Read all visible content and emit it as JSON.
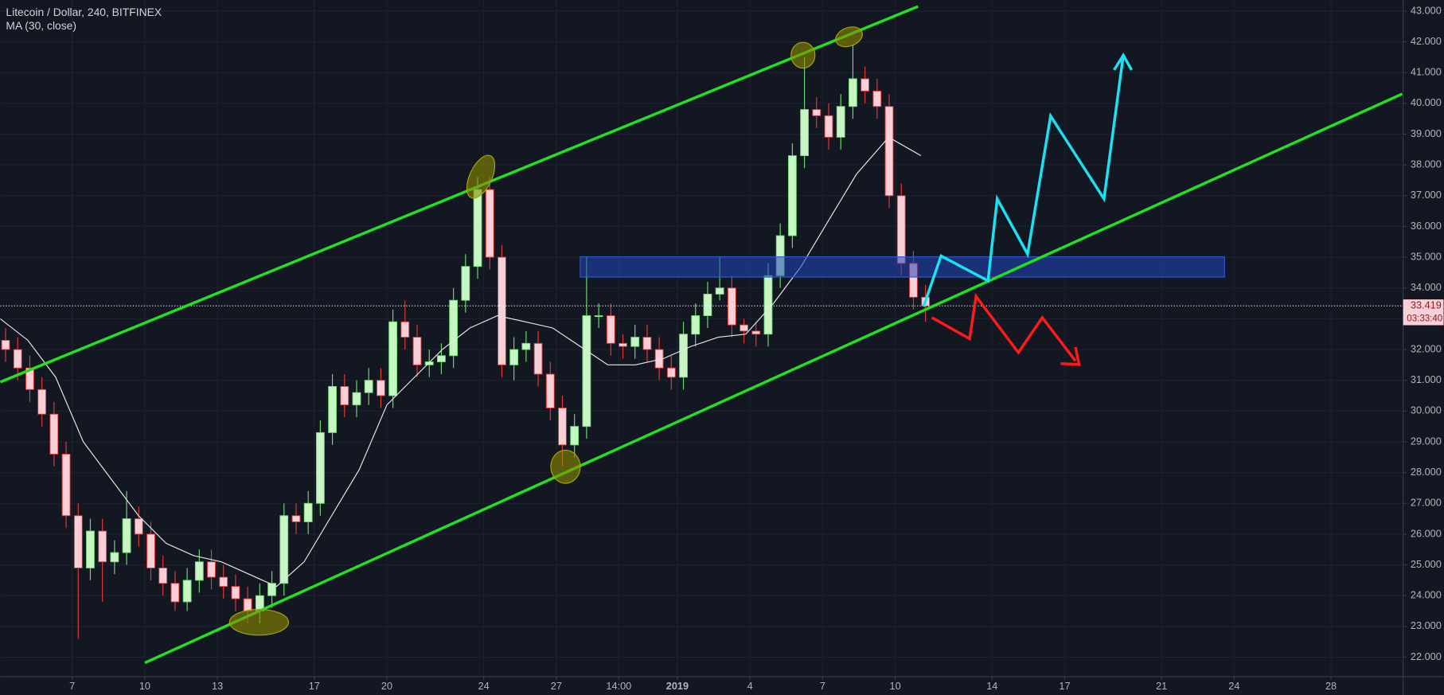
{
  "chart_data": {
    "type": "candlestick",
    "title": "Litecoin / Dollar, 240, BITFINEX",
    "up_color": "#c8f5c4",
    "up_wick": "#6ddc6d",
    "down_color": "#f9d0d8",
    "down_wick": "#e53935",
    "candles": {
      "x": [
        -2.75,
        -2.25,
        -1.75,
        -1.25,
        -0.75,
        -0.25,
        0.25,
        0.75,
        1.25,
        1.75,
        2.25,
        2.75,
        3.25,
        3.75,
        4.25,
        4.75,
        5.25,
        5.75,
        6.25,
        6.75,
        7.25,
        7.75,
        8.25,
        8.75,
        9.25,
        9.75,
        10.25,
        10.75,
        11.25,
        11.75,
        12.25,
        12.75,
        13.25,
        13.75,
        14.25,
        14.75,
        15.25,
        15.75,
        16.25,
        16.75,
        17.25,
        17.75,
        18.25,
        18.75,
        19.25,
        19.75,
        20.25,
        20.75,
        21.25,
        21.75,
        22.25,
        22.75,
        23.25,
        23.75,
        24.25,
        24.75,
        25.25,
        25.75,
        26.25,
        26.75,
        27.25,
        27.75,
        28.25,
        28.75,
        29.25,
        29.75,
        30.25,
        30.75,
        31.25,
        31.75,
        32.25,
        32.75,
        33.25,
        33.75,
        34.25,
        34.75,
        35.25
      ],
      "open": [
        32.3,
        32.0,
        31.4,
        30.7,
        29.9,
        28.6,
        26.6,
        24.9,
        26.1,
        25.1,
        25.4,
        26.5,
        26.0,
        24.9,
        24.4,
        23.8,
        24.5,
        25.1,
        24.6,
        24.3,
        23.9,
        23.5,
        24.0,
        24.4,
        26.6,
        26.4,
        27.0,
        29.3,
        30.8,
        30.2,
        30.6,
        31.0,
        30.5,
        32.9,
        32.4,
        31.5,
        31.6,
        31.8,
        33.6,
        34.7,
        37.2,
        35.0,
        31.5,
        32.0,
        32.2,
        31.2,
        30.1,
        28.9,
        29.5,
        33.1,
        33.1,
        32.2,
        32.1,
        32.4,
        32.0,
        31.4,
        31.1,
        32.5,
        33.1,
        33.8,
        34.0,
        32.8,
        32.6,
        32.5,
        34.4,
        35.7,
        38.3,
        39.8,
        39.6,
        38.9,
        39.9,
        40.8,
        40.4,
        39.9,
        37.0,
        34.8,
        33.7
      ],
      "high": [
        32.7,
        32.4,
        31.8,
        31.1,
        30.3,
        29.0,
        27.0,
        26.5,
        26.5,
        25.8,
        27.4,
        26.9,
        26.4,
        25.3,
        24.8,
        24.9,
        25.5,
        25.5,
        25.0,
        24.7,
        24.3,
        24.4,
        24.8,
        27.0,
        27.0,
        27.4,
        29.7,
        31.2,
        31.2,
        31.0,
        31.4,
        31.4,
        33.3,
        33.6,
        32.8,
        32.0,
        32.2,
        34.0,
        35.1,
        37.6,
        37.6,
        35.4,
        32.4,
        32.6,
        32.6,
        31.6,
        30.5,
        29.9,
        35.0,
        33.5,
        33.5,
        32.5,
        32.8,
        32.8,
        32.4,
        31.8,
        32.9,
        33.5,
        34.2,
        35.0,
        34.4,
        33.0,
        32.9,
        34.8,
        36.1,
        38.7,
        41.5,
        40.2,
        40.0,
        40.3,
        41.9,
        41.2,
        40.8,
        40.3,
        37.4,
        35.2,
        34.1
      ],
      "low": [
        31.6,
        31.0,
        30.3,
        29.5,
        28.2,
        26.2,
        22.6,
        24.5,
        23.8,
        24.7,
        25.0,
        25.6,
        24.5,
        24.0,
        23.5,
        23.5,
        24.1,
        24.2,
        23.9,
        23.5,
        23.1,
        23.1,
        23.6,
        24.0,
        26.0,
        26.0,
        26.6,
        28.9,
        29.8,
        29.8,
        30.2,
        30.1,
        30.1,
        32.0,
        31.1,
        31.1,
        31.2,
        31.4,
        33.2,
        34.3,
        34.6,
        31.1,
        31.0,
        31.6,
        30.8,
        29.7,
        28.2,
        28.5,
        29.1,
        32.7,
        31.8,
        31.7,
        31.7,
        31.6,
        31.0,
        30.7,
        30.7,
        32.1,
        32.7,
        33.6,
        32.4,
        32.2,
        32.1,
        32.1,
        34.0,
        35.3,
        37.9,
        39.2,
        38.5,
        38.5,
        39.5,
        40.0,
        39.5,
        36.6,
        34.4,
        33.3,
        32.9
      ],
      "close": [
        32.0,
        31.4,
        30.7,
        29.9,
        28.6,
        26.6,
        24.9,
        26.1,
        25.1,
        25.4,
        26.5,
        26.0,
        24.9,
        24.4,
        23.8,
        24.5,
        25.1,
        24.6,
        24.3,
        23.9,
        23.5,
        24.0,
        24.4,
        26.6,
        26.4,
        27.0,
        29.3,
        30.8,
        30.2,
        30.6,
        31.0,
        30.5,
        32.9,
        32.4,
        31.5,
        31.6,
        31.8,
        33.6,
        34.7,
        37.2,
        35.0,
        31.5,
        32.0,
        32.2,
        31.2,
        30.1,
        28.9,
        29.5,
        33.1,
        33.1,
        32.2,
        32.1,
        32.4,
        32.0,
        31.4,
        31.1,
        32.5,
        33.1,
        33.8,
        34.0,
        32.8,
        32.6,
        32.5,
        34.4,
        35.7,
        38.3,
        39.8,
        39.6,
        38.9,
        39.9,
        40.8,
        40.4,
        39.9,
        37.0,
        34.8,
        33.7,
        33.42
      ]
    },
    "ma": {
      "name": "MA (30, close)",
      "color": "#e8e8e8",
      "x": [
        -2.97,
        -1.83,
        -0.68,
        0.46,
        1.6,
        2.74,
        3.88,
        5.02,
        6.16,
        7.3,
        8.44,
        9.58,
        10.72,
        11.86,
        13.0,
        14.14,
        15.29,
        16.43,
        17.57,
        18.71,
        19.85,
        20.99,
        22.13,
        23.27,
        24.41,
        25.55,
        26.69,
        27.83,
        28.97,
        30.11,
        31.25,
        32.4,
        33.73,
        35.06
      ],
      "values": [
        33.0,
        32.3,
        31.1,
        29.0,
        27.8,
        26.6,
        25.7,
        25.3,
        25.1,
        24.7,
        24.3,
        25.1,
        26.6,
        28.1,
        30.2,
        31.1,
        32.0,
        32.7,
        33.1,
        32.9,
        32.7,
        32.1,
        31.5,
        31.5,
        31.7,
        32.1,
        32.4,
        32.5,
        33.5,
        34.7,
        36.2,
        37.7,
        38.9,
        38.3
      ]
    },
    "last_price": {
      "value": 33.419,
      "label": "33.419"
    },
    "countdown": "03:33:40",
    "xlim": [
      -2.966,
      54.98
    ],
    "ylim": [
      21.37,
      43.36
    ],
    "grid": true,
    "xticks": [
      {
        "value": 0,
        "label": "7"
      },
      {
        "value": 3,
        "label": "10"
      },
      {
        "value": 6,
        "label": "13"
      },
      {
        "value": 10,
        "label": "17"
      },
      {
        "value": 13,
        "label": "20"
      },
      {
        "value": 17,
        "label": "24"
      },
      {
        "value": 20,
        "label": "27"
      },
      {
        "value": 22.58,
        "label": "14:00"
      },
      {
        "value": 25,
        "label": "2019"
      },
      {
        "value": 28,
        "label": "4"
      },
      {
        "value": 31,
        "label": "7"
      },
      {
        "value": 34,
        "label": "10"
      },
      {
        "value": 38,
        "label": "14"
      },
      {
        "value": 41,
        "label": "17"
      },
      {
        "value": 45,
        "label": "21"
      },
      {
        "value": 48,
        "label": "24"
      },
      {
        "value": 52,
        "label": "28"
      }
    ],
    "yticks": [
      {
        "value": 22,
        "label": "22.000"
      },
      {
        "value": 23,
        "label": "23.000"
      },
      {
        "value": 24,
        "label": "24.000"
      },
      {
        "value": 25,
        "label": "25.000"
      },
      {
        "value": 26,
        "label": "26.000"
      },
      {
        "value": 27,
        "label": "27.000"
      },
      {
        "value": 28,
        "label": "28.000"
      },
      {
        "value": 29,
        "label": "29.000"
      },
      {
        "value": 30,
        "label": "30.000"
      },
      {
        "value": 31,
        "label": "31.000"
      },
      {
        "value": 32,
        "label": "32.000"
      },
      {
        "value": 33,
        "label": "33.000"
      },
      {
        "value": 34,
        "label": "34.000"
      },
      {
        "value": 35,
        "label": "35.000"
      },
      {
        "value": 36,
        "label": "36.000"
      },
      {
        "value": 37,
        "label": "37.000"
      },
      {
        "value": 38,
        "label": "38.000"
      },
      {
        "value": 39,
        "label": "39.000"
      },
      {
        "value": 40,
        "label": "40.000"
      },
      {
        "value": 41,
        "label": "41.000"
      },
      {
        "value": 42,
        "label": "42.000"
      },
      {
        "value": 43,
        "label": "43.000"
      }
    ]
  }
}
